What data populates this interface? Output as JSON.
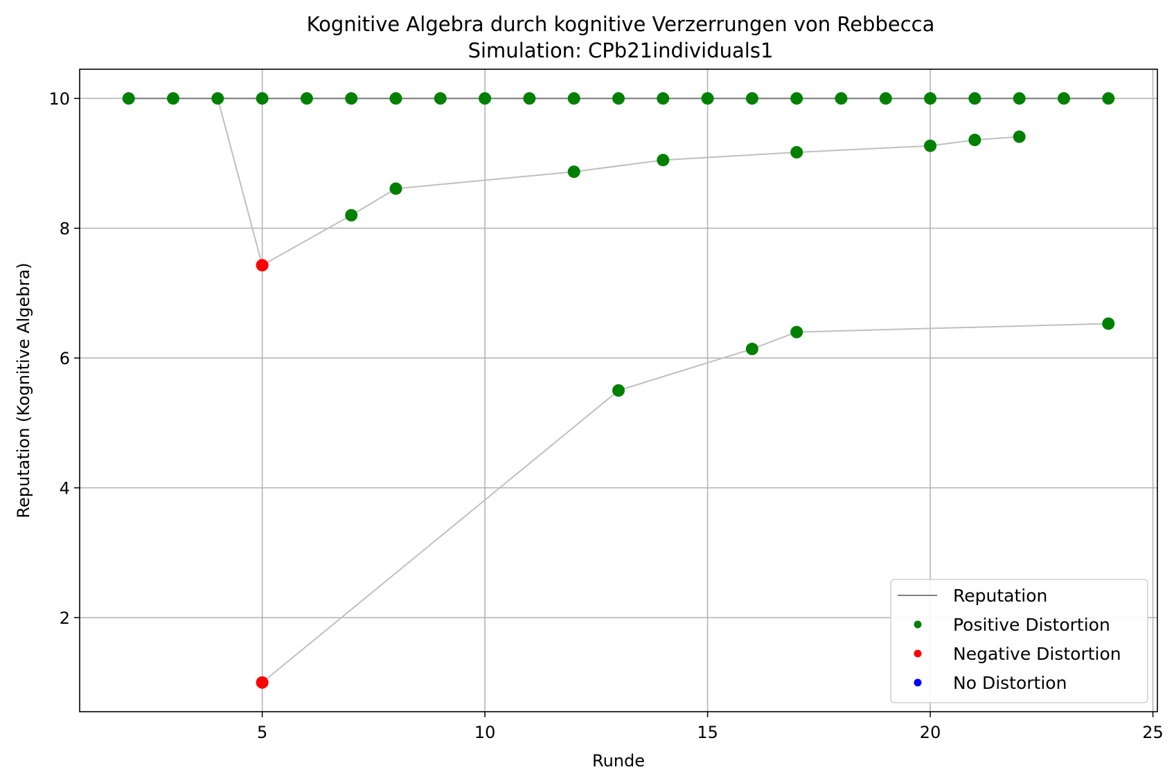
{
  "chart_data": {
    "type": "scatter",
    "title": "Kognitive Algebra durch kognitive Verzerrungen von Rebbecca",
    "subtitle": "Simulation: CPb21individuals1",
    "xlabel": "Runde",
    "ylabel": "Reputation (Kognitive Algebra)",
    "xlim": [
      0.9,
      25.1
    ],
    "ylim": [
      0.55,
      10.45
    ],
    "xticks": [
      5,
      10,
      15,
      20,
      25
    ],
    "yticks": [
      2,
      4,
      6,
      8,
      10
    ],
    "grid": true,
    "legend_position": "lower-right",
    "colors": {
      "reputation": "#808080",
      "connector": "#bfbfbf",
      "positive": "#008000",
      "negative": "#ff0000",
      "none": "#0000ff"
    },
    "legend": [
      {
        "label": "Reputation",
        "kind": "line",
        "color": "#808080"
      },
      {
        "label": "Positive Distortion",
        "kind": "marker",
        "color": "#008000"
      },
      {
        "label": "Negative Distortion",
        "kind": "marker",
        "color": "#ff0000"
      },
      {
        "label": "No Distortion",
        "kind": "marker",
        "color": "#0000ff"
      }
    ],
    "reputation_line": {
      "x": [
        2,
        24
      ],
      "y": [
        10,
        10
      ]
    },
    "connector_lines": [
      {
        "x": [
          4,
          5,
          7,
          8,
          12,
          14,
          17,
          20,
          21,
          22
        ],
        "y": [
          10,
          7.43,
          8.2,
          8.61,
          8.87,
          9.05,
          9.17,
          9.27,
          9.36,
          9.41
        ]
      },
      {
        "x": [
          5,
          13,
          16,
          17,
          24
        ],
        "y": [
          1.0,
          5.5,
          6.14,
          6.4,
          6.53
        ]
      }
    ],
    "series": [
      {
        "name": "Positive Distortion",
        "color": "#008000",
        "points": [
          [
            2,
            10
          ],
          [
            3,
            10
          ],
          [
            4,
            10
          ],
          [
            5,
            10
          ],
          [
            6,
            10
          ],
          [
            7,
            10
          ],
          [
            8,
            10
          ],
          [
            9,
            10
          ],
          [
            10,
            10
          ],
          [
            11,
            10
          ],
          [
            12,
            10
          ],
          [
            13,
            10
          ],
          [
            14,
            10
          ],
          [
            15,
            10
          ],
          [
            16,
            10
          ],
          [
            17,
            10
          ],
          [
            18,
            10
          ],
          [
            19,
            10
          ],
          [
            20,
            10
          ],
          [
            21,
            10
          ],
          [
            22,
            10
          ],
          [
            23,
            10
          ],
          [
            24,
            10
          ],
          [
            7,
            8.2
          ],
          [
            8,
            8.61
          ],
          [
            12,
            8.87
          ],
          [
            14,
            9.05
          ],
          [
            17,
            9.17
          ],
          [
            20,
            9.27
          ],
          [
            21,
            9.36
          ],
          [
            22,
            9.41
          ],
          [
            13,
            5.5
          ],
          [
            16,
            6.14
          ],
          [
            17,
            6.4
          ],
          [
            24,
            6.53
          ]
        ]
      },
      {
        "name": "Negative Distortion",
        "color": "#ff0000",
        "points": [
          [
            5,
            7.43
          ],
          [
            5,
            1.0
          ]
        ]
      },
      {
        "name": "No Distortion",
        "color": "#0000ff",
        "points": []
      }
    ]
  }
}
